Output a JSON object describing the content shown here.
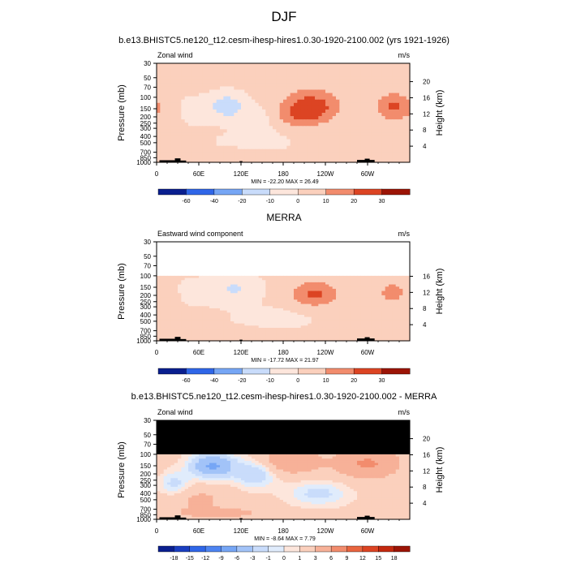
{
  "figure": {
    "title": "DJF"
  },
  "colors": {
    "diverging_wind": [
      "#0a1f8f",
      "#1a3ec0",
      "#2f66e8",
      "#4d84f2",
      "#76a6f5",
      "#a2c3f8",
      "#c9dcfb",
      "#e0ecfc",
      "#fde6dc",
      "#fbd0bd",
      "#f7b198",
      "#f28c6d",
      "#e9653f",
      "#dc4423",
      "#c4290f",
      "#9c1406"
    ],
    "land": "#000000",
    "frame": "#000000",
    "background": "#ffffff"
  },
  "chart_data": [
    {
      "type": "heatmap",
      "title": "b.e13.BHISTC5.ne120_t12.cesm-ihesp-hires1.0.30-1920-2100.002 (yrs 1921-1926)",
      "field_label": "Zonal wind",
      "units": "m/s",
      "xlabel": "",
      "ylabel": "Pressure (mb)",
      "y2label": "Height (km)",
      "x_ticks": [
        "0",
        "60E",
        "120E",
        "180",
        "120W",
        "60W"
      ],
      "x_tick_lon": [
        0,
        60,
        120,
        180,
        240,
        300
      ],
      "xlim": [
        0,
        360
      ],
      "y_ticks": [
        "30",
        "50",
        "70",
        "100",
        "150",
        "200",
        "250",
        "300",
        "400",
        "500",
        "700",
        "850",
        "1000"
      ],
      "y_tick_p": [
        30,
        50,
        70,
        100,
        150,
        200,
        250,
        300,
        400,
        500,
        700,
        850,
        1000
      ],
      "ylim": [
        1000,
        30
      ],
      "y_scale": "log",
      "y2_ticks": [
        "4",
        "8",
        "12",
        "16",
        "20"
      ],
      "y2_tick_km": [
        4,
        8,
        12,
        16,
        20
      ],
      "data_top_p": 30,
      "masked_top": false,
      "min_max_text": "MIN = -22.20  MAX = 26.49",
      "colorbar_levels": [
        "-60",
        "-40",
        "-20",
        "-10",
        "0",
        "10",
        "20",
        "30"
      ],
      "field": {
        "base": 1.2,
        "blobs": [
          {
            "lon": 100,
            "p": 135,
            "amp": -18,
            "slon": 16,
            "sp": 0.28
          },
          {
            "lon": 145,
            "p": 200,
            "amp": -6,
            "slon": 26,
            "sp": 0.3
          },
          {
            "lon": 40,
            "p": 160,
            "amp": -4,
            "slon": 35,
            "sp": 0.35
          },
          {
            "lon": 220,
            "p": 140,
            "amp": 25,
            "slon": 28,
            "sp": 0.42
          },
          {
            "lon": 195,
            "p": 220,
            "amp": 10,
            "slon": 25,
            "sp": 0.35
          },
          {
            "lon": 337,
            "p": 140,
            "amp": 21,
            "slon": 18,
            "sp": 0.35
          },
          {
            "lon": 15,
            "p": 160,
            "amp": 6,
            "slon": 15,
            "sp": 0.35
          },
          {
            "lon": 100,
            "p": 770,
            "amp": 9,
            "slon": 40,
            "sp": 0.12
          },
          {
            "lon": 200,
            "p": 300,
            "amp": -5,
            "slon": 30,
            "sp": 0.25
          },
          {
            "lon": 150,
            "p": 500,
            "amp": -3,
            "slon": 50,
            "sp": 0.3
          },
          {
            "lon": 250,
            "p": 550,
            "amp": 3,
            "slon": 40,
            "sp": 0.3
          }
        ]
      }
    },
    {
      "type": "heatmap",
      "title": "MERRA",
      "field_label": "Eastward wind component",
      "units": "m/s",
      "xlabel": "",
      "ylabel": "Pressure (mb)",
      "y2label": "Height (km)",
      "x_ticks": [
        "0",
        "60E",
        "120E",
        "180",
        "120W",
        "60W"
      ],
      "x_tick_lon": [
        0,
        60,
        120,
        180,
        240,
        300
      ],
      "xlim": [
        0,
        360
      ],
      "y_ticks": [
        "30",
        "50",
        "70",
        "100",
        "150",
        "200",
        "250",
        "300",
        "400",
        "500",
        "700",
        "850",
        "1000"
      ],
      "y_tick_p": [
        30,
        50,
        70,
        100,
        150,
        200,
        250,
        300,
        400,
        500,
        700,
        850,
        1000
      ],
      "ylim": [
        1000,
        30
      ],
      "y_scale": "log",
      "y2_ticks": [
        "4",
        "8",
        "12",
        "16"
      ],
      "y2_tick_km": [
        4,
        8,
        12,
        16
      ],
      "data_top_p": 100,
      "masked_top": false,
      "min_max_text": "MIN = -17.72  MAX = 21.97",
      "colorbar_levels": [
        "-60",
        "-40",
        "-20",
        "-10",
        "0",
        "10",
        "20",
        "30"
      ],
      "field": {
        "base": 1.0,
        "blobs": [
          {
            "lon": 110,
            "p": 160,
            "amp": -12,
            "slon": 22,
            "sp": 0.3
          },
          {
            "lon": 40,
            "p": 180,
            "amp": -3,
            "slon": 30,
            "sp": 0.35
          },
          {
            "lon": 225,
            "p": 190,
            "amp": 21,
            "slon": 24,
            "sp": 0.32
          },
          {
            "lon": 335,
            "p": 180,
            "amp": 14,
            "slon": 14,
            "sp": 0.3
          },
          {
            "lon": 15,
            "p": 200,
            "amp": 4,
            "slon": 15,
            "sp": 0.35
          },
          {
            "lon": 90,
            "p": 800,
            "amp": 5,
            "slon": 45,
            "sp": 0.15
          },
          {
            "lon": 180,
            "p": 450,
            "amp": -3,
            "slon": 50,
            "sp": 0.3
          },
          {
            "lon": 270,
            "p": 550,
            "amp": 2,
            "slon": 40,
            "sp": 0.3
          }
        ]
      }
    },
    {
      "type": "heatmap",
      "title": "b.e13.BHISTC5.ne120_t12.cesm-ihesp-hires1.0.30-1920-2100.002 - MERRA",
      "field_label": "Zonal wind",
      "units": "m/s",
      "xlabel": "",
      "ylabel": "Pressure (mb)",
      "y2label": "Height (km)",
      "x_ticks": [
        "0",
        "60E",
        "120E",
        "180",
        "120W",
        "60W"
      ],
      "x_tick_lon": [
        0,
        60,
        120,
        180,
        240,
        300
      ],
      "xlim": [
        0,
        360
      ],
      "y_ticks": [
        "30",
        "50",
        "70",
        "100",
        "150",
        "200",
        "250",
        "300",
        "400",
        "500",
        "700",
        "850",
        "1000"
      ],
      "y_tick_p": [
        30,
        50,
        70,
        100,
        150,
        200,
        250,
        300,
        400,
        500,
        700,
        850,
        1000
      ],
      "ylim": [
        1000,
        30
      ],
      "y_scale": "log",
      "y2_ticks": [
        "4",
        "8",
        "12",
        "16",
        "20"
      ],
      "y2_tick_km": [
        4,
        8,
        12,
        16,
        20
      ],
      "data_top_p": 100,
      "masked_top": true,
      "min_max_text": "MIN = -8.64  MAX = 7.79",
      "colorbar_levels": [
        "-18",
        "-15",
        "-12",
        "-9",
        "-6",
        "-3",
        "-1",
        "0",
        "1",
        "3",
        "6",
        "9",
        "12",
        "15",
        "18"
      ],
      "field": {
        "base": 1.5,
        "blobs": [
          {
            "lon": 80,
            "p": 150,
            "amp": -8,
            "slon": 22,
            "sp": 0.3
          },
          {
            "lon": 140,
            "p": 200,
            "amp": -4,
            "slon": 20,
            "sp": 0.35
          },
          {
            "lon": 25,
            "p": 280,
            "amp": -3,
            "slon": 15,
            "sp": 0.3
          },
          {
            "lon": 190,
            "p": 130,
            "amp": 4,
            "slon": 30,
            "sp": 0.3
          },
          {
            "lon": 300,
            "p": 140,
            "amp": 5,
            "slon": 30,
            "sp": 0.35
          },
          {
            "lon": 60,
            "p": 500,
            "amp": 2,
            "slon": 30,
            "sp": 0.3
          },
          {
            "lon": 230,
            "p": 400,
            "amp": -3,
            "slon": 30,
            "sp": 0.3
          },
          {
            "lon": 90,
            "p": 800,
            "amp": 3,
            "slon": 40,
            "sp": 0.12
          }
        ]
      }
    }
  ]
}
